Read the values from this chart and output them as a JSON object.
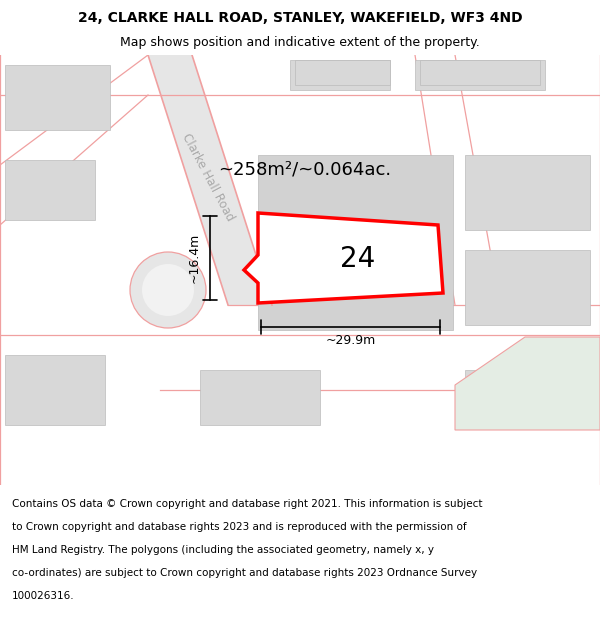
{
  "title": "24, CLARKE HALL ROAD, STANLEY, WAKEFIELD, WF3 4ND",
  "subtitle": "Map shows position and indicative extent of the property.",
  "footer_lines": [
    "Contains OS data © Crown copyright and database right 2021. This information is subject",
    "to Crown copyright and database rights 2023 and is reproduced with the permission of",
    "HM Land Registry. The polygons (including the associated geometry, namely x, y",
    "co-ordinates) are subject to Crown copyright and database rights 2023 Ordnance Survey",
    "100026316."
  ],
  "bg_map_color": "#f2f2f2",
  "road_color": "#f0a0a0",
  "building_color": "#d8d8d8",
  "highlight_color": "#ff0000",
  "highlight_fill": "#ffffff",
  "road_label": "Clarke Hall Road",
  "area_label": "~258m²/~0.064ac.",
  "number_label": "24",
  "dim_width": "~29.9m",
  "dim_height": "~16.4m",
  "title_fontsize": 10,
  "subtitle_fontsize": 9,
  "footer_fontsize": 7.5
}
